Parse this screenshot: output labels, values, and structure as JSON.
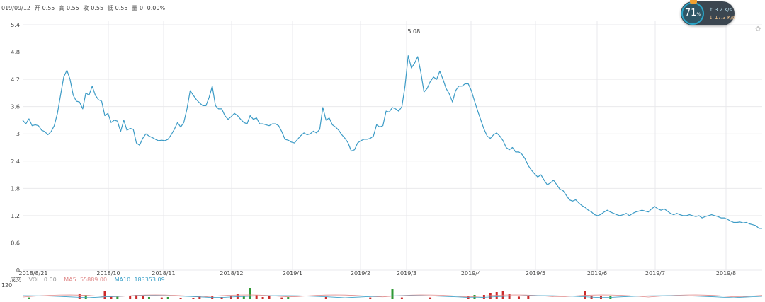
{
  "info_bar": {
    "date": "019/09/12",
    "open_label": "开",
    "open": "0.55",
    "high_label": "高",
    "high": "0.55",
    "close_label": "收",
    "close": "0.55",
    "low_label": "低",
    "low": "0.55",
    "volume_label": "量",
    "volume": "0",
    "change": "0.00%"
  },
  "volume_info": {
    "title": "成交",
    "vol": "VOL: 0.00",
    "ma5": "MA5: 55889.00",
    "ma10": "MA10: 183353.09",
    "axis_top": "120"
  },
  "widget": {
    "percent": "71",
    "percent_unit": "%",
    "upload": "3.2 K/s",
    "download": "17.3 K/s"
  },
  "colors": {
    "line": "#3c9bc6",
    "grid": "#e9e9ec",
    "up_bar": "#cc2a2a",
    "down_bar": "#2f9a35",
    "ma5": "#e08a8a",
    "ma10": "#3aa0c8"
  },
  "chart_data": {
    "type": "line",
    "y_ticks": [
      "0",
      "0.6",
      "1.2",
      "1.8",
      "2.4",
      "3",
      "3.6",
      "4.2",
      "4.8",
      "5.4"
    ],
    "ylim": [
      0,
      5.4
    ],
    "x_ticks": [
      "2018/8/21",
      "2018/10",
      "2018/11",
      "2018/12",
      "2019/1",
      "2019/2",
      "2019/3",
      "2019/4",
      "2019/5",
      "2019/6",
      "2019/7",
      "2019/8"
    ],
    "annotation": "5.08",
    "grid": true,
    "series": [
      {
        "values": [
          3.3,
          3.22,
          3.33,
          3.18,
          3.2,
          3.18,
          3.08,
          3.05,
          2.98,
          3.05,
          3.18,
          3.45,
          3.85,
          4.25,
          4.4,
          4.2,
          3.85,
          3.72,
          3.7,
          3.55,
          3.9,
          3.85,
          4.05,
          3.85,
          3.75,
          3.72,
          3.4,
          3.45,
          3.25,
          3.3,
          3.28,
          3.05,
          3.3,
          3.08,
          3.12,
          3.1,
          2.8,
          2.75,
          2.9,
          3.0,
          2.95,
          2.92,
          2.88,
          2.85,
          2.86,
          2.85,
          2.88,
          2.98,
          3.1,
          3.25,
          3.15,
          3.25,
          3.55,
          3.95,
          3.85,
          3.75,
          3.68,
          3.62,
          3.62,
          3.8,
          4.05,
          3.62,
          3.55,
          3.55,
          3.4,
          3.32,
          3.38,
          3.45,
          3.4,
          3.32,
          3.25,
          3.22,
          3.4,
          3.32,
          3.35,
          3.22,
          3.22,
          3.2,
          3.18,
          3.22,
          3.22,
          3.18,
          3.05,
          2.88,
          2.86,
          2.82,
          2.8,
          2.88,
          2.96,
          3.02,
          2.98,
          3.0,
          3.06,
          3.02,
          3.1,
          3.58,
          3.3,
          3.35,
          3.2,
          3.15,
          3.08,
          2.98,
          2.9,
          2.8,
          2.62,
          2.65,
          2.8,
          2.85,
          2.88,
          2.88,
          2.9,
          2.95,
          3.2,
          3.15,
          3.18,
          3.5,
          3.48,
          3.58,
          3.55,
          3.5,
          3.6,
          4.05,
          4.72,
          4.45,
          4.55,
          4.7,
          4.35,
          3.92,
          4.0,
          4.15,
          4.25,
          4.2,
          4.38,
          4.2,
          4.0,
          3.88,
          3.7,
          3.95,
          4.05,
          4.05,
          4.1,
          4.1,
          3.95,
          3.72,
          3.5,
          3.3,
          3.1,
          2.95,
          2.9,
          2.98,
          3.02,
          2.95,
          2.85,
          2.7,
          2.65,
          2.7,
          2.6,
          2.6,
          2.55,
          2.45,
          2.3,
          2.2,
          2.12,
          2.05,
          2.1,
          1.98,
          1.88,
          1.92,
          1.98,
          1.88,
          1.78,
          1.75,
          1.65,
          1.55,
          1.52,
          1.55,
          1.48,
          1.42,
          1.38,
          1.32,
          1.28,
          1.22,
          1.2,
          1.23,
          1.28,
          1.32,
          1.28,
          1.25,
          1.22,
          1.2,
          1.22,
          1.25,
          1.2,
          1.25,
          1.28,
          1.3,
          1.32,
          1.3,
          1.28,
          1.35,
          1.4,
          1.35,
          1.32,
          1.35,
          1.3,
          1.25,
          1.22,
          1.25,
          1.22,
          1.2,
          1.2,
          1.22,
          1.2,
          1.18,
          1.2,
          1.15,
          1.18,
          1.2,
          1.22,
          1.2,
          1.18,
          1.15,
          1.15,
          1.12,
          1.08,
          1.05,
          1.05,
          1.06,
          1.04,
          1.05,
          1.02,
          1.0,
          0.98,
          0.92,
          0.92
        ]
      }
    ],
    "volume": {
      "ymax": 120,
      "bars": [
        {
          "i": 2,
          "v": 12,
          "up": false
        },
        {
          "i": 18,
          "v": 40,
          "up": true
        },
        {
          "i": 20,
          "v": 30,
          "up": false
        },
        {
          "i": 26,
          "v": 55,
          "up": true
        },
        {
          "i": 28,
          "v": 22,
          "up": true
        },
        {
          "i": 30,
          "v": 18,
          "up": false
        },
        {
          "i": 34,
          "v": 25,
          "up": true
        },
        {
          "i": 36,
          "v": 30,
          "up": true
        },
        {
          "i": 38,
          "v": 20,
          "up": true
        },
        {
          "i": 40,
          "v": 15,
          "up": false
        },
        {
          "i": 44,
          "v": 12,
          "up": true
        },
        {
          "i": 46,
          "v": 15,
          "up": false
        },
        {
          "i": 50,
          "v": 10,
          "up": true
        },
        {
          "i": 54,
          "v": 10,
          "up": true
        },
        {
          "i": 56,
          "v": 25,
          "up": true
        },
        {
          "i": 60,
          "v": 20,
          "up": true
        },
        {
          "i": 63,
          "v": 15,
          "up": true
        },
        {
          "i": 66,
          "v": 25,
          "up": true
        },
        {
          "i": 68,
          "v": 40,
          "up": true
        },
        {
          "i": 70,
          "v": 20,
          "up": false
        },
        {
          "i": 72,
          "v": 80,
          "up": false
        },
        {
          "i": 74,
          "v": 30,
          "up": true
        },
        {
          "i": 76,
          "v": 15,
          "up": true
        },
        {
          "i": 78,
          "v": 20,
          "up": true
        },
        {
          "i": 82,
          "v": 12,
          "up": true
        },
        {
          "i": 84,
          "v": 15,
          "up": false
        },
        {
          "i": 96,
          "v": 15,
          "up": true
        },
        {
          "i": 110,
          "v": 12,
          "up": true
        },
        {
          "i": 117,
          "v": 70,
          "up": false
        },
        {
          "i": 120,
          "v": 12,
          "up": true
        },
        {
          "i": 129,
          "v": 12,
          "up": true
        },
        {
          "i": 141,
          "v": 25,
          "up": true
        },
        {
          "i": 143,
          "v": 30,
          "up": false
        },
        {
          "i": 146,
          "v": 30,
          "up": true
        },
        {
          "i": 148,
          "v": 45,
          "up": true
        },
        {
          "i": 150,
          "v": 50,
          "up": true
        },
        {
          "i": 152,
          "v": 55,
          "up": true
        },
        {
          "i": 154,
          "v": 40,
          "up": true
        },
        {
          "i": 157,
          "v": 18,
          "up": true
        },
        {
          "i": 160,
          "v": 20,
          "up": true
        },
        {
          "i": 178,
          "v": 60,
          "up": true
        },
        {
          "i": 180,
          "v": 20,
          "up": true
        },
        {
          "i": 183,
          "v": 25,
          "up": true
        },
        {
          "i": 186,
          "v": 20,
          "up": false
        }
      ]
    }
  }
}
